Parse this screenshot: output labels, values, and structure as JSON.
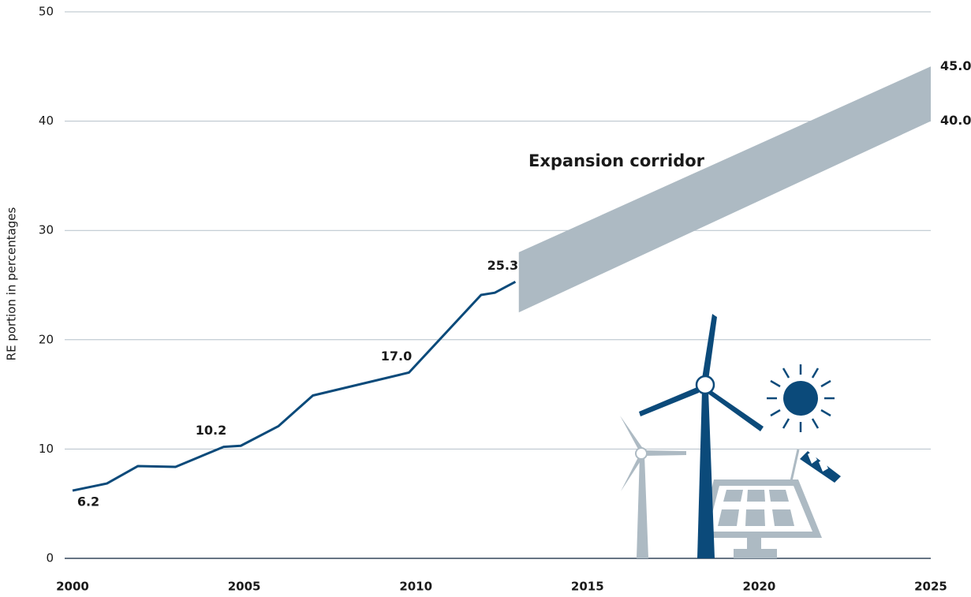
{
  "chart_data": {
    "type": "line",
    "y_label": "RE portion in percentages",
    "xlim": [
      2000,
      2025
    ],
    "ylim": [
      0,
      50
    ],
    "xticks": [
      2000,
      2005,
      2010,
      2015,
      2020,
      2025
    ],
    "yticks": [
      0,
      10,
      20,
      30,
      40,
      50
    ],
    "grid": true,
    "series": [
      {
        "color": "#0b4a7a",
        "x": [
          2000,
          2001,
          2001.9,
          2003,
          2004.4,
          2004.9,
          2006,
          2007,
          2009.8,
          2011.9,
          2012.3,
          2012.9
        ],
        "values": [
          6.2,
          6.85,
          8.44,
          8.37,
          10.2,
          10.3,
          12.1,
          14.9,
          17,
          24.1,
          24.3,
          25.3
        ],
        "value_labels": [
          "6.2",
          null,
          null,
          null,
          "10.2",
          null,
          null,
          null,
          "17.0",
          null,
          null,
          "25.3"
        ]
      }
    ],
    "band": {
      "name": "Expansion corridor",
      "color": "#adbac3",
      "label_color": "#0b4a7a",
      "x": [
        2013,
        2025
      ],
      "lower": [
        22.5,
        40
      ],
      "upper": [
        28,
        45
      ],
      "lower_labels": [
        null,
        "40.0"
      ],
      "upper_labels": [
        null,
        "45.0"
      ]
    }
  }
}
